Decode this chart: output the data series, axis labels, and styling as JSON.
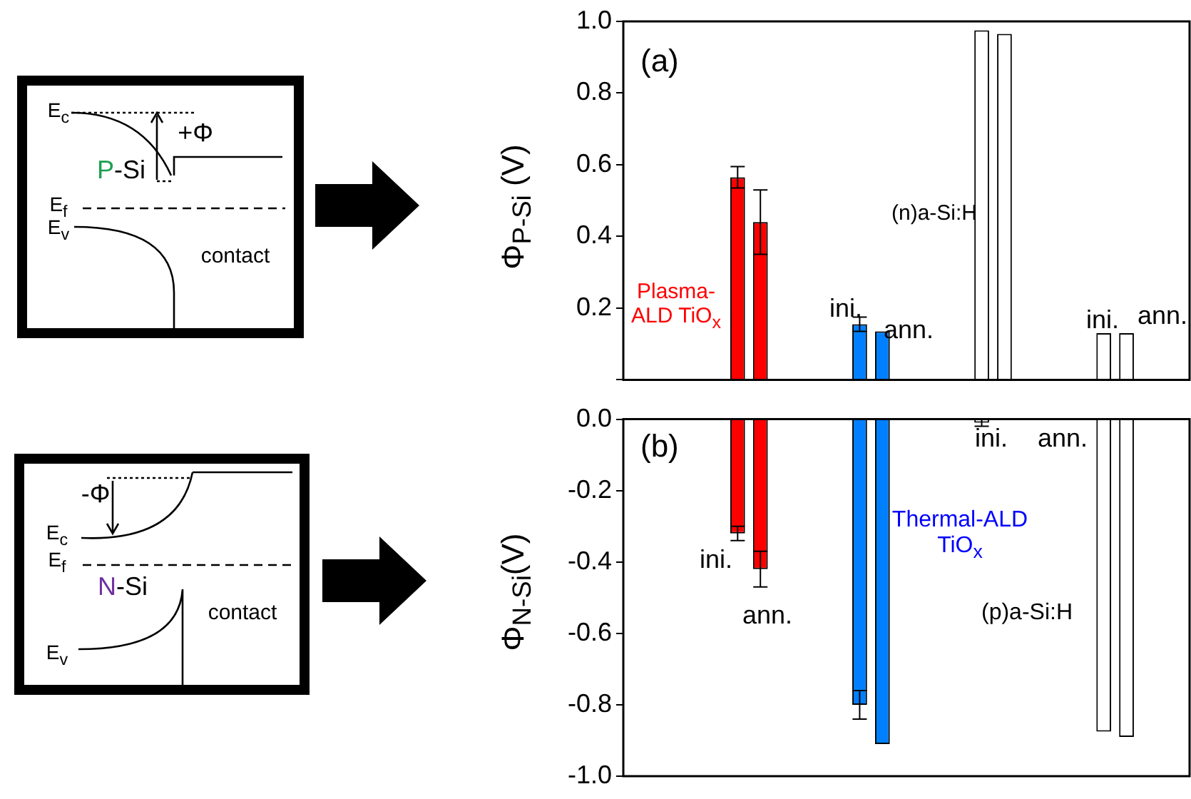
{
  "chart_data": [
    {
      "type": "bar",
      "categories": [
        null,
        null,
        null,
        null
      ],
      "tick_labels": "y",
      "ylabel": "Φ$_{P-Si}$ (V)",
      "ylim": [
        0,
        1.0
      ],
      "yticks": [
        {
          "value": 0,
          "label": null
        },
        0.2,
        0.4,
        0.6,
        0.8,
        {
          "value": 1,
          "label": "1.0"
        }
      ],
      "series": [
        {
          "colors": [
            "#ff0000",
            "#0080ff",
            "#ffffff",
            "#ffffff"
          ],
          "values": [
            0.565,
            0.155,
            0.975,
            0.13
          ],
          "errors": [
            0.03,
            0.02,
            null,
            null
          ]
        },
        {
          "colors": [
            "#ff0000",
            "#0080ff",
            "#ffffff",
            "#ffffff"
          ],
          "values": [
            0.44,
            0.135,
            0.965,
            0.13
          ],
          "errors": [
            0.09,
            null,
            null,
            null
          ]
        }
      ],
      "annotations": [
        "(a)",
        "Plasma-ALD TiO$_{x}$",
        "ini.",
        "ann.",
        "(n)a-Si:H",
        "ini.",
        "ann.",
        "E$_{c}$",
        "+Φ",
        "P-Si",
        "E$_{f}$",
        "E$_{v}$",
        "contact"
      ]
    },
    {
      "type": "bar",
      "categories": [
        null,
        null,
        null,
        null
      ],
      "tick_labels": "y",
      "ylabel": "Φ$_{N-Si}$(V)",
      "ylim": [
        -1.0,
        0
      ],
      "yticks": [
        {
          "value": 0,
          "label": "0.0"
        },
        -0.2,
        -0.4,
        -0.6,
        -0.8,
        {
          "value": -1,
          "label": "-1.0"
        }
      ],
      "series": [
        {
          "colors": [
            "#ff0000",
            "#0080ff",
            "#ffffff",
            "#ffffff"
          ],
          "values": [
            -0.32,
            -0.8,
            -0.01,
            -0.875
          ],
          "errors": [
            0.02,
            0.04,
            0.01,
            null
          ]
        },
        {
          "colors": [
            "#ff0000",
            "#0080ff",
            "#ffffff",
            "#ffffff"
          ],
          "values": [
            -0.42,
            -0.91,
            null,
            -0.89
          ],
          "errors": [
            0.05,
            null,
            null,
            null
          ]
        }
      ],
      "annotations": [
        "(b)",
        "ini.",
        "ann.",
        "Thermal-ALD TiO$_{x}$",
        "ini.",
        "ann.",
        "(p)a-Si:H",
        "-Φ",
        "E$_{c}$",
        "E$_{f}$",
        "N-Si",
        "contact",
        "E$_{v}$"
      ]
    }
  ]
}
